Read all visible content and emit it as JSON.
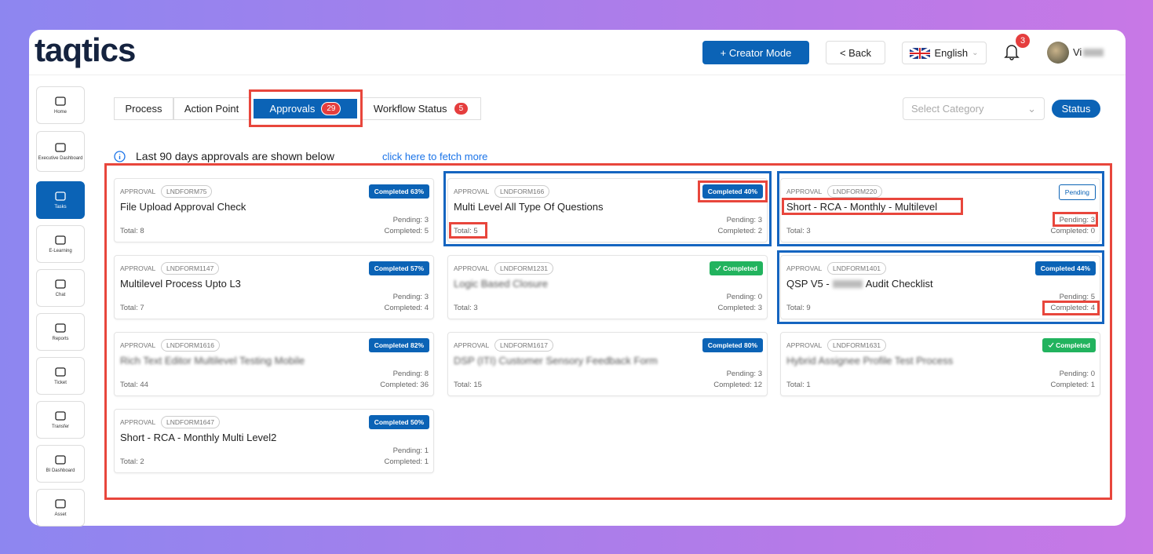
{
  "header": {
    "logo": "taqtics",
    "creator_mode": "+ Creator Mode",
    "back": "< Back",
    "language": "English",
    "notifications": "3",
    "user": "Vi"
  },
  "sidebar": [
    "Home",
    "Executive Dashboard",
    "Tasks",
    "E-Learning",
    "Chat",
    "Reports",
    "Ticket",
    "Transfer",
    "BI Dashboard",
    "Asset"
  ],
  "tabs": [
    {
      "label": "Process"
    },
    {
      "label": "Action Point"
    },
    {
      "label": "Approvals",
      "badge": "29"
    },
    {
      "label": "Workflow Status",
      "badge": "5"
    }
  ],
  "select_placeholder": "Select Category",
  "status_button": "Status",
  "info": {
    "text": "Last 90 days approvals are shown below",
    "link": "click here to fetch more"
  },
  "cards": [
    {
      "kind": "APPROVAL",
      "id": "LNDFORM75",
      "title": "File Upload Approval Check",
      "badge": "Completed 63%",
      "badge_color": "#0b63b6",
      "pending": "Pending: 3",
      "total": "Total: 8",
      "completed": "Completed: 5"
    },
    {
      "kind": "APPROVAL",
      "id": "LNDFORM166",
      "title": "Multi Level All Type Of Questions",
      "badge": "Completed 40%",
      "badge_color": "#0b63b6",
      "pending": "Pending: 3",
      "total": "Total: 5",
      "completed": "Completed: 2"
    },
    {
      "kind": "APPROVAL",
      "id": "LNDFORM220",
      "title": "Short - RCA - Monthly - Multilevel",
      "badge": "Pending",
      "badge_color": "#ffffff",
      "pending": "Pending: 3",
      "total": "Total: 3",
      "completed": "Completed: 0"
    },
    {
      "kind": "APPROVAL",
      "id": "LNDFORM1147",
      "title": "Multilevel Process Upto L3",
      "badge": "Completed 57%",
      "badge_color": "#0b63b6",
      "pending": "Pending: 3",
      "total": "Total: 7",
      "completed": "Completed: 4"
    },
    {
      "kind": "APPROVAL",
      "id": "LNDFORM1231",
      "title": "Logic Based Closure",
      "blur": true,
      "badge": "Completed",
      "badge_color": "#22b35e",
      "pending": "Pending: 0",
      "total": "Total: 3",
      "completed": "Completed: 3"
    },
    {
      "kind": "APPROVAL",
      "id": "LNDFORM1401",
      "title": "QSP V5 -",
      "title_end": "Audit Checklist",
      "badge": "Completed 44%",
      "badge_color": "#0b63b6",
      "pending": "Pending: 5",
      "total": "Total: 9",
      "completed": "Completed: 4"
    },
    {
      "kind": "APPROVAL",
      "id": "LNDFORM1616",
      "title": "Rich Text Editor Multilevel Testing Mobile",
      "blur": true,
      "badge": "Completed 82%",
      "badge_color": "#0b63b6",
      "pending": "Pending: 8",
      "total": "Total: 44",
      "completed": "Completed: 36"
    },
    {
      "kind": "APPROVAL",
      "id": "LNDFORM1617",
      "title": "DSP (ITI) Customer Sensory Feedback Form",
      "blur": true,
      "badge": "Completed 80%",
      "badge_color": "#0b63b6",
      "pending": "Pending: 3",
      "total": "Total: 15",
      "completed": "Completed: 12"
    },
    {
      "kind": "APPROVAL",
      "id": "LNDFORM1631",
      "title": "Hybrid Assignee Profile Test Process",
      "blur": true,
      "badge": "Completed",
      "badge_color": "#22b35e",
      "pending": "Pending: 0",
      "total": "Total: 1",
      "completed": "Completed: 1"
    },
    {
      "kind": "APPROVAL",
      "id": "LNDFORM1647",
      "title": "Short - RCA - Monthly Multi Level2",
      "badge": "Completed 50%",
      "badge_color": "#0b63b6",
      "pending": "Pending: 1",
      "total": "Total: 2",
      "completed": "Completed: 1"
    }
  ]
}
